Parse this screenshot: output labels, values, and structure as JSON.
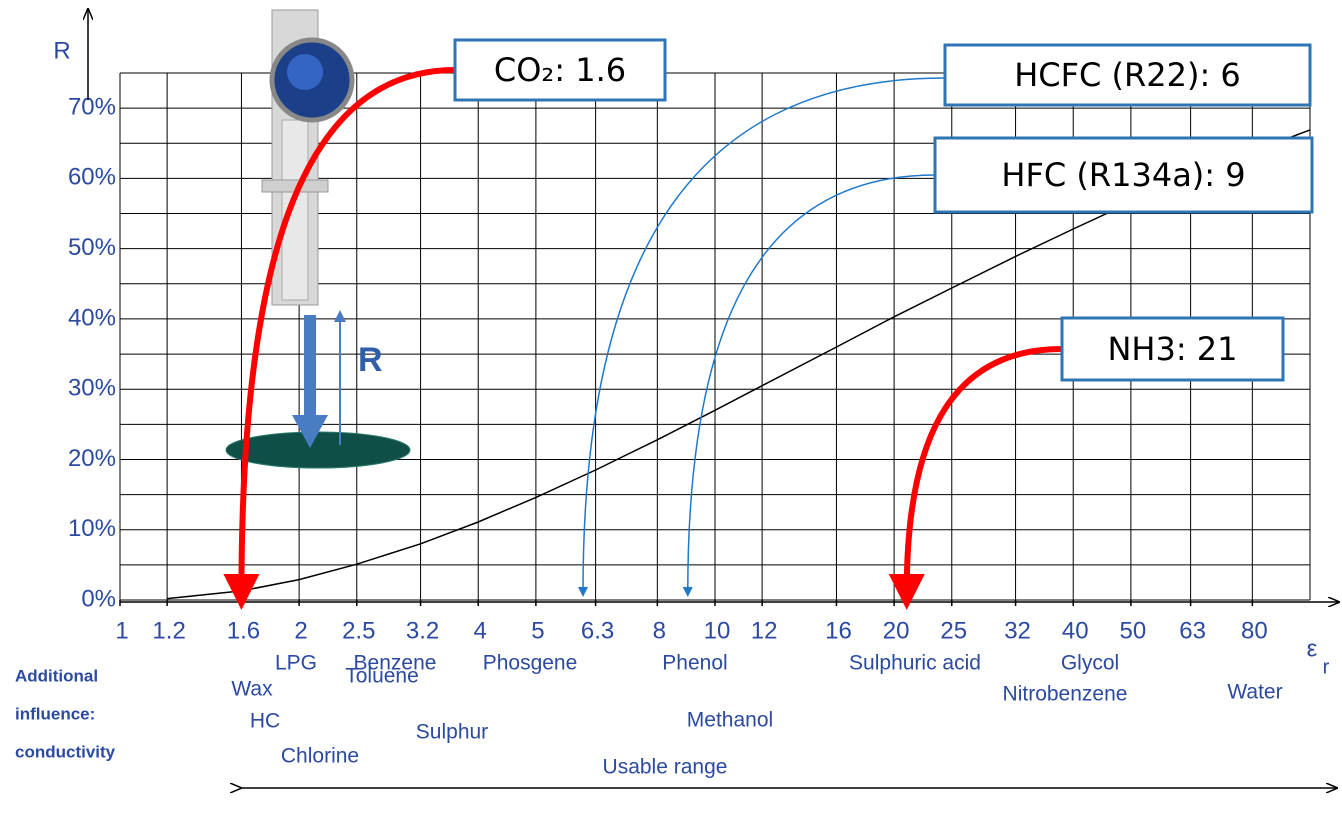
{
  "chart_data": {
    "type": "line",
    "y_label": "R",
    "x_label": "ε",
    "x_label_sub": "r",
    "x": [
      1.2,
      1.6,
      2,
      2.5,
      3.2,
      4,
      5,
      6.3,
      8,
      10,
      12,
      16,
      20,
      25,
      32,
      40,
      50,
      63,
      80,
      100
    ],
    "values": [
      0.2,
      1.3,
      2.9,
      5.1,
      8.0,
      11.1,
      14.6,
      18.5,
      22.8,
      27.0,
      30.5,
      36.0,
      40.3,
      44.4,
      48.9,
      52.8,
      56.6,
      60.3,
      63.8,
      66.9
    ],
    "color": "#000000",
    "xscale": "log",
    "xlim": [
      1,
      100
    ],
    "xticks": [
      1,
      1.2,
      1.6,
      2,
      2.5,
      3.2,
      4,
      5,
      6.3,
      8,
      10,
      12,
      16,
      20,
      25,
      32,
      40,
      50,
      63,
      80
    ],
    "ylim": [
      0,
      75
    ],
    "yticks": [
      {
        "value": 0,
        "label": "0%"
      },
      {
        "value": 10,
        "label": "10%"
      },
      {
        "value": 20,
        "label": "20%"
      },
      {
        "value": 30,
        "label": "30%"
      },
      {
        "value": 40,
        "label": "40%"
      },
      {
        "value": 50,
        "label": "50%"
      },
      {
        "value": 60,
        "label": "60%"
      },
      {
        "value": 70,
        "label": "70%"
      }
    ],
    "ygrid": [
      5,
      15,
      25,
      35,
      45,
      55,
      65,
      75
    ],
    "grid": true,
    "annotations": [
      {
        "text": "CO₂: 1.6",
        "x": 1.6,
        "color": "#ff0000"
      },
      {
        "text": "HCFC (R22): 6",
        "x": 6,
        "color": "#1f78c8"
      },
      {
        "text": "HFC (R134a): 9",
        "x": 9,
        "color": "#1f78c8"
      },
      {
        "text": "NH3: 21",
        "x": 21,
        "color": "#ff0000"
      }
    ],
    "materials": [
      "LPG",
      "Benzene",
      "Phosgene",
      "Phenol",
      "Sulphuric acid",
      "Glycol",
      "Water",
      "Wax",
      "Toluene",
      "HC",
      "Chlorine",
      "Sulphur",
      "Methanol",
      "Nitrobenzene"
    ],
    "note": [
      "Additional",
      "influence:",
      "conductivity"
    ],
    "range_label": "Usable range",
    "illustration_label": "R"
  }
}
